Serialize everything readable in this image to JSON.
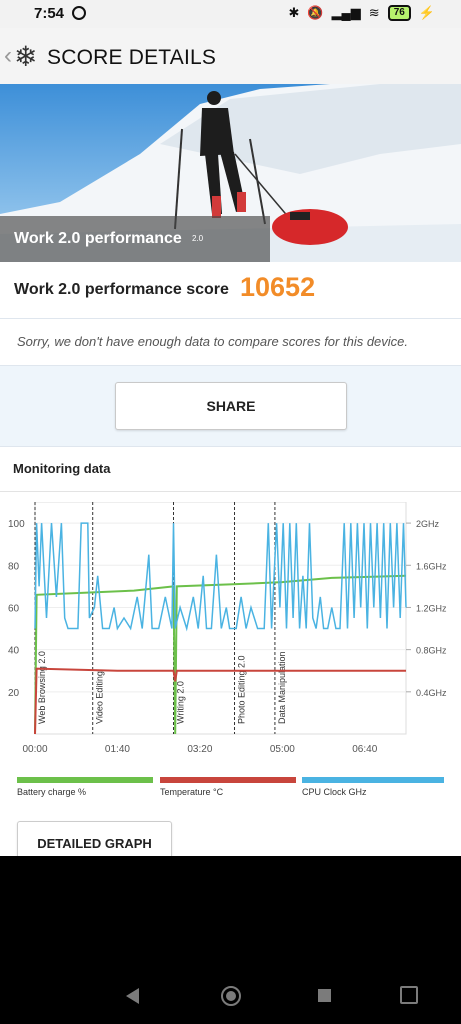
{
  "status_bar": {
    "time": "7:54",
    "icons": [
      "bluetooth-icon",
      "mute-icon",
      "signal-icon",
      "wifi-icon",
      "charging-icon"
    ],
    "battery": "76"
  },
  "app_bar": {
    "title": "SCORE DETAILS",
    "logo": "snowflake-icon"
  },
  "hero": {
    "caption": "Work 2.0 performance",
    "badge": "2.0"
  },
  "score": {
    "label": "Work 2.0 performance score",
    "value": "10652"
  },
  "notice": "Sorry, we don't have enough data to compare scores for this device.",
  "share_label": "SHARE",
  "monitoring": {
    "title": "Monitoring data",
    "detailed_label": "DETAILED GRAPH",
    "legend": [
      {
        "label": "Battery charge %",
        "color": "#6cc04a"
      },
      {
        "label": "Temperature °C",
        "color": "#c8453c"
      },
      {
        "label": "CPU Clock GHz",
        "color": "#4ab3e2"
      }
    ]
  },
  "chart_data": {
    "type": "line",
    "x_ticks": [
      "00:00",
      "01:40",
      "03:20",
      "05:00",
      "06:40"
    ],
    "y_left_ticks": [
      "100",
      "80",
      "60",
      "40",
      "20"
    ],
    "y_right_ticks": [
      "2GHz",
      "1.6GHz",
      "1.2GHz",
      "0.8GHz",
      "0.4GHz"
    ],
    "y_left_range": [
      0,
      110
    ],
    "y_right_range": [
      0,
      2.2
    ],
    "x_range_seconds": [
      0,
      450
    ],
    "sections": [
      {
        "label": "Web Browsing 2.0",
        "t": 0
      },
      {
        "label": "Video Editing",
        "t": 70
      },
      {
        "label": "Writing 2.0",
        "t": 168
      },
      {
        "label": "Photo Editing 2.0",
        "t": 242
      },
      {
        "label": "Data Manipulation",
        "t": 291
      }
    ],
    "series": [
      {
        "name": "Battery charge %",
        "axis": "left",
        "points": [
          [
            0,
            0
          ],
          [
            2,
            66
          ],
          [
            60,
            67
          ],
          [
            120,
            68
          ],
          [
            168,
            70
          ],
          [
            170,
            0
          ],
          [
            172,
            70
          ],
          [
            240,
            71
          ],
          [
            300,
            72
          ],
          [
            360,
            74
          ],
          [
            450,
            75
          ]
        ]
      },
      {
        "name": "Temperature °C",
        "axis": "left",
        "points": [
          [
            0,
            0
          ],
          [
            2,
            31
          ],
          [
            100,
            30
          ],
          [
            168,
            30
          ],
          [
            170,
            25
          ],
          [
            172,
            30
          ],
          [
            300,
            30
          ],
          [
            450,
            30
          ]
        ]
      },
      {
        "name": "CPU Clock GHz",
        "axis": "right",
        "points": [
          [
            0,
            1.0
          ],
          [
            2,
            2.0
          ],
          [
            5,
            1.4
          ],
          [
            8,
            2.0
          ],
          [
            14,
            1.1
          ],
          [
            20,
            2.0
          ],
          [
            26,
            1.3
          ],
          [
            32,
            2.0
          ],
          [
            36,
            1.1
          ],
          [
            40,
            1.0
          ],
          [
            52,
            1.0
          ],
          [
            56,
            2.0
          ],
          [
            64,
            2.0
          ],
          [
            66,
            1.1
          ],
          [
            72,
            1.2
          ],
          [
            76,
            1.5
          ],
          [
            82,
            1.0
          ],
          [
            90,
            1.0
          ],
          [
            96,
            1.2
          ],
          [
            100,
            1.0
          ],
          [
            108,
            1.1
          ],
          [
            116,
            1.0
          ],
          [
            124,
            1.3
          ],
          [
            130,
            1.0
          ],
          [
            138,
            1.7
          ],
          [
            142,
            1.0
          ],
          [
            150,
            1.0
          ],
          [
            158,
            1.3
          ],
          [
            166,
            1.0
          ],
          [
            168,
            2.0
          ],
          [
            170,
            1.0
          ],
          [
            176,
            1.2
          ],
          [
            184,
            1.0
          ],
          [
            192,
            1.3
          ],
          [
            198,
            1.0
          ],
          [
            204,
            1.5
          ],
          [
            208,
            1.0
          ],
          [
            214,
            1.0
          ],
          [
            220,
            1.7
          ],
          [
            226,
            1.0
          ],
          [
            232,
            1.2
          ],
          [
            236,
            1.0
          ],
          [
            244,
            1.0
          ],
          [
            250,
            1.3
          ],
          [
            256,
            1.0
          ],
          [
            262,
            1.2
          ],
          [
            270,
            1.0
          ],
          [
            278,
            1.0
          ],
          [
            283,
            2.0
          ],
          [
            287,
            1.0
          ],
          [
            293,
            2.0
          ],
          [
            297,
            1.2
          ],
          [
            301,
            2.0
          ],
          [
            305,
            1.0
          ],
          [
            309,
            2.0
          ],
          [
            313,
            1.1
          ],
          [
            317,
            2.0
          ],
          [
            321,
            1.0
          ],
          [
            325,
            1.5
          ],
          [
            329,
            1.0
          ],
          [
            333,
            2.0
          ],
          [
            337,
            1.1
          ],
          [
            341,
            1.0
          ],
          [
            346,
            1.3
          ],
          [
            350,
            1.0
          ],
          [
            355,
            1.0
          ],
          [
            360,
            1.2
          ],
          [
            365,
            1.0
          ],
          [
            370,
            1.0
          ],
          [
            375,
            2.0
          ],
          [
            379,
            1.0
          ],
          [
            383,
            2.0
          ],
          [
            387,
            1.1
          ],
          [
            391,
            2.0
          ],
          [
            395,
            1.2
          ],
          [
            399,
            2.0
          ],
          [
            403,
            1.0
          ],
          [
            407,
            2.0
          ],
          [
            411,
            1.2
          ],
          [
            415,
            2.0
          ],
          [
            419,
            1.1
          ],
          [
            423,
            2.0
          ],
          [
            427,
            1.0
          ],
          [
            431,
            2.0
          ],
          [
            435,
            1.2
          ],
          [
            439,
            2.0
          ],
          [
            443,
            1.1
          ],
          [
            447,
            2.0
          ],
          [
            450,
            1.2
          ]
        ]
      }
    ]
  }
}
